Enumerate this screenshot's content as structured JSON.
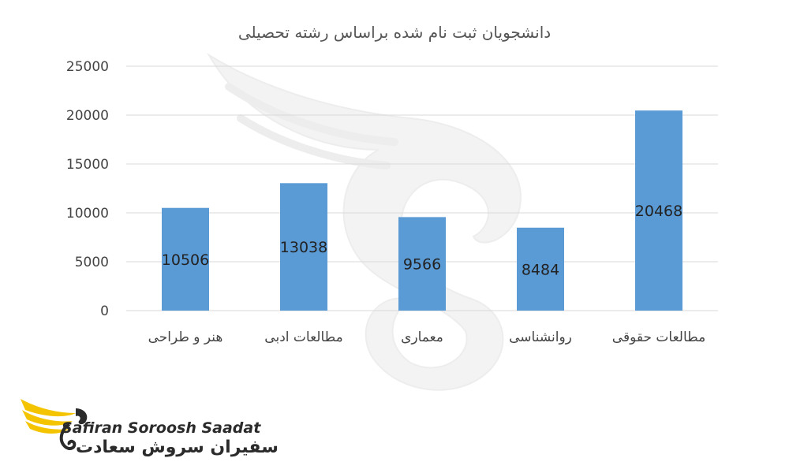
{
  "chart_data": {
    "type": "bar",
    "title": "دانشجویان ثبت نام شده براساس رشته تحصیلی",
    "categories": [
      "هنر و طراحی",
      "مطالعات ادبی",
      "معماری",
      "روانشناسی",
      "مطالعات حقوقی"
    ],
    "values": [
      10506,
      13038,
      9566,
      8484,
      20468
    ],
    "data_labels": [
      "10506",
      "13038",
      "9566",
      "8484",
      "20468"
    ],
    "ylim": [
      0,
      25000
    ],
    "yticks": [
      0,
      5000,
      10000,
      15000,
      20000,
      25000
    ],
    "ytick_labels": [
      "0",
      "5000",
      "10000",
      "15000",
      "20000",
      "25000"
    ],
    "grid": true,
    "bar_color": "#5b9bd5",
    "xlabel": "",
    "ylabel": ""
  },
  "brand": {
    "name_en": "Safiran Soroosh Saadat",
    "name_fa": "سفیران سروش سعادت",
    "accent": "#f5c400",
    "icon": "wing-logo-icon"
  }
}
